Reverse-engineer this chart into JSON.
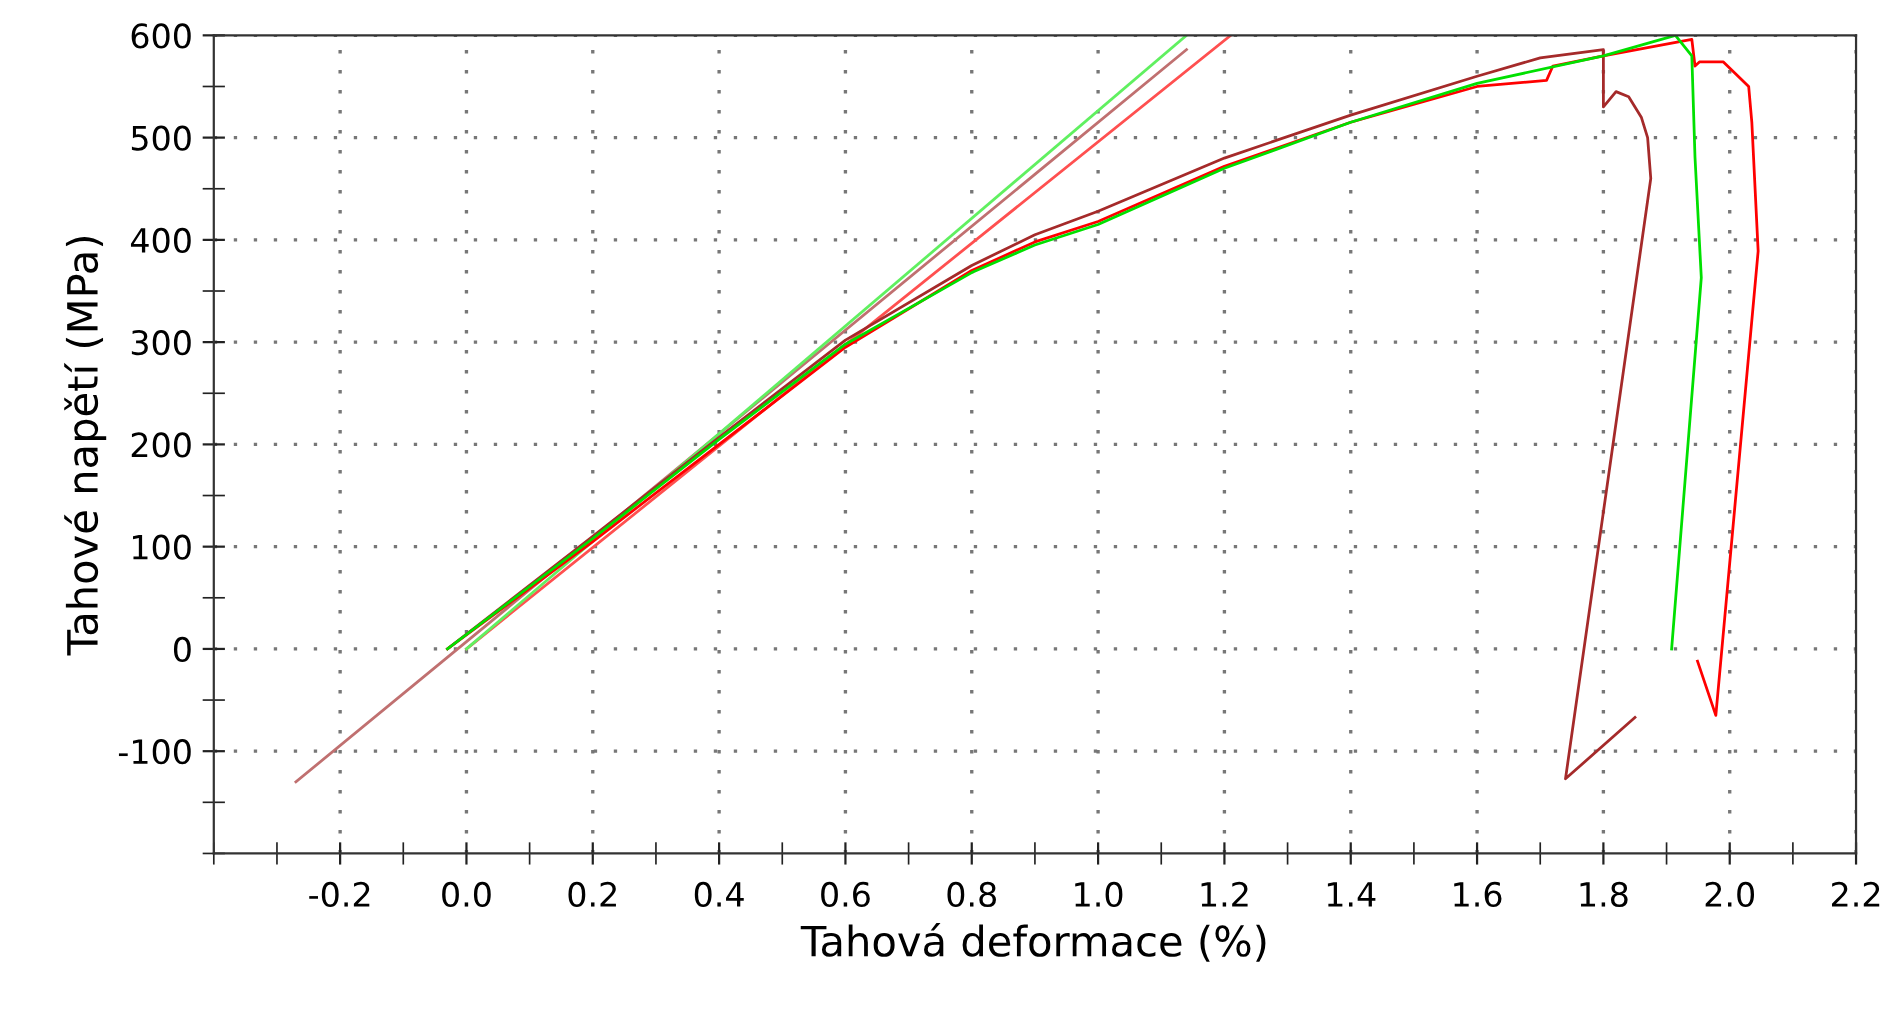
{
  "chart_data": {
    "type": "line",
    "xlabel": "Tahová deformace (%)",
    "ylabel": "Tahové napětí (MPa)",
    "xlim": [
      -0.4,
      2.2
    ],
    "ylim": [
      -200,
      600
    ],
    "xticks": [
      {
        "value": -0.4,
        "label": null
      },
      {
        "value": -0.3,
        "label": null
      },
      {
        "value": -0.2,
        "label": "-0.2"
      },
      {
        "value": -0.1,
        "label": null
      },
      {
        "value": 0,
        "label": "0.0"
      },
      {
        "value": 0.1,
        "label": null
      },
      {
        "value": 0.2,
        "label": "0.2"
      },
      {
        "value": 0.3,
        "label": null
      },
      {
        "value": 0.4,
        "label": "0.4"
      },
      {
        "value": 0.5,
        "label": null
      },
      {
        "value": 0.6,
        "label": "0.6"
      },
      {
        "value": 0.7,
        "label": null
      },
      {
        "value": 0.8,
        "label": "0.8"
      },
      {
        "value": 0.9,
        "label": null
      },
      {
        "value": 1.0,
        "label": "1.0"
      },
      {
        "value": 1.1,
        "label": null
      },
      {
        "value": 1.2,
        "label": "1.2"
      },
      {
        "value": 1.3,
        "label": null
      },
      {
        "value": 1.4,
        "label": "1.4"
      },
      {
        "value": 1.5,
        "label": null
      },
      {
        "value": 1.6,
        "label": "1.6"
      },
      {
        "value": 1.7,
        "label": null
      },
      {
        "value": 1.8,
        "label": "1.8"
      },
      {
        "value": 1.9,
        "label": null
      },
      {
        "value": 2.0,
        "label": "2.0"
      },
      {
        "value": 2.1,
        "label": null
      },
      {
        "value": 2.2,
        "label": "2.2"
      }
    ],
    "yticks": [
      {
        "value": -200,
        "label": null
      },
      {
        "value": -150,
        "label": null
      },
      {
        "value": -100,
        "label": "-100"
      },
      {
        "value": -50,
        "label": null
      },
      0,
      {
        "value": 50,
        "label": null
      },
      100,
      {
        "value": 150,
        "label": null
      },
      200,
      {
        "value": 250,
        "label": null
      },
      300,
      {
        "value": 350,
        "label": null
      },
      400,
      {
        "value": 450,
        "label": null
      },
      500,
      {
        "value": 550,
        "label": null
      },
      600
    ],
    "grid": true,
    "line_style": "solid",
    "marker": "none",
    "series": [
      {
        "color": "#c07070",
        "x": [
          -0.27,
          1.14
        ],
        "values": [
          -130,
          586
        ]
      },
      {
        "color": "#ff5050",
        "x": [
          0,
          1.21
        ],
        "values": [
          0,
          600
        ]
      },
      {
        "color": "#60f060",
        "x": [
          0,
          1.14
        ],
        "values": [
          0,
          600
        ]
      },
      {
        "color": "#a52a2a",
        "x": [
          -0.03,
          0.2,
          0.4,
          0.6,
          0.8,
          0.9,
          1.0,
          1.2,
          1.4,
          1.6,
          1.7,
          1.8,
          1.8,
          1.82,
          1.84,
          1.86,
          1.87,
          1.875,
          1.74,
          1.85
        ],
        "values": [
          0,
          110,
          207,
          302,
          375,
          405,
          428,
          480,
          522,
          560,
          578,
          586,
          530,
          545,
          540,
          520,
          500,
          460,
          -127,
          -67
        ]
      },
      {
        "color": "#ff0000",
        "x": [
          -0.03,
          0.2,
          0.4,
          0.6,
          0.8,
          0.9,
          1.0,
          1.2,
          1.4,
          1.6,
          1.71,
          1.72,
          1.8,
          1.94,
          1.945,
          1.952,
          1.99,
          2.03,
          2.035,
          2.045,
          1.978,
          1.949
        ],
        "values": [
          0,
          105,
          200,
          295,
          370,
          398,
          418,
          472,
          515,
          550,
          556,
          570,
          580,
          596,
          570,
          574,
          574,
          550,
          515,
          389,
          -65,
          -12
        ]
      },
      {
        "color": "#00e000",
        "x": [
          -0.03,
          0.2,
          0.4,
          0.6,
          0.8,
          0.9,
          1.0,
          1.2,
          1.4,
          1.6,
          1.8,
          1.914,
          1.94,
          1.945,
          1.955,
          1.908
        ],
        "values": [
          0,
          108,
          205,
          298,
          368,
          395,
          415,
          470,
          515,
          553,
          580,
          600,
          580,
          481,
          363,
          0
        ]
      }
    ]
  }
}
